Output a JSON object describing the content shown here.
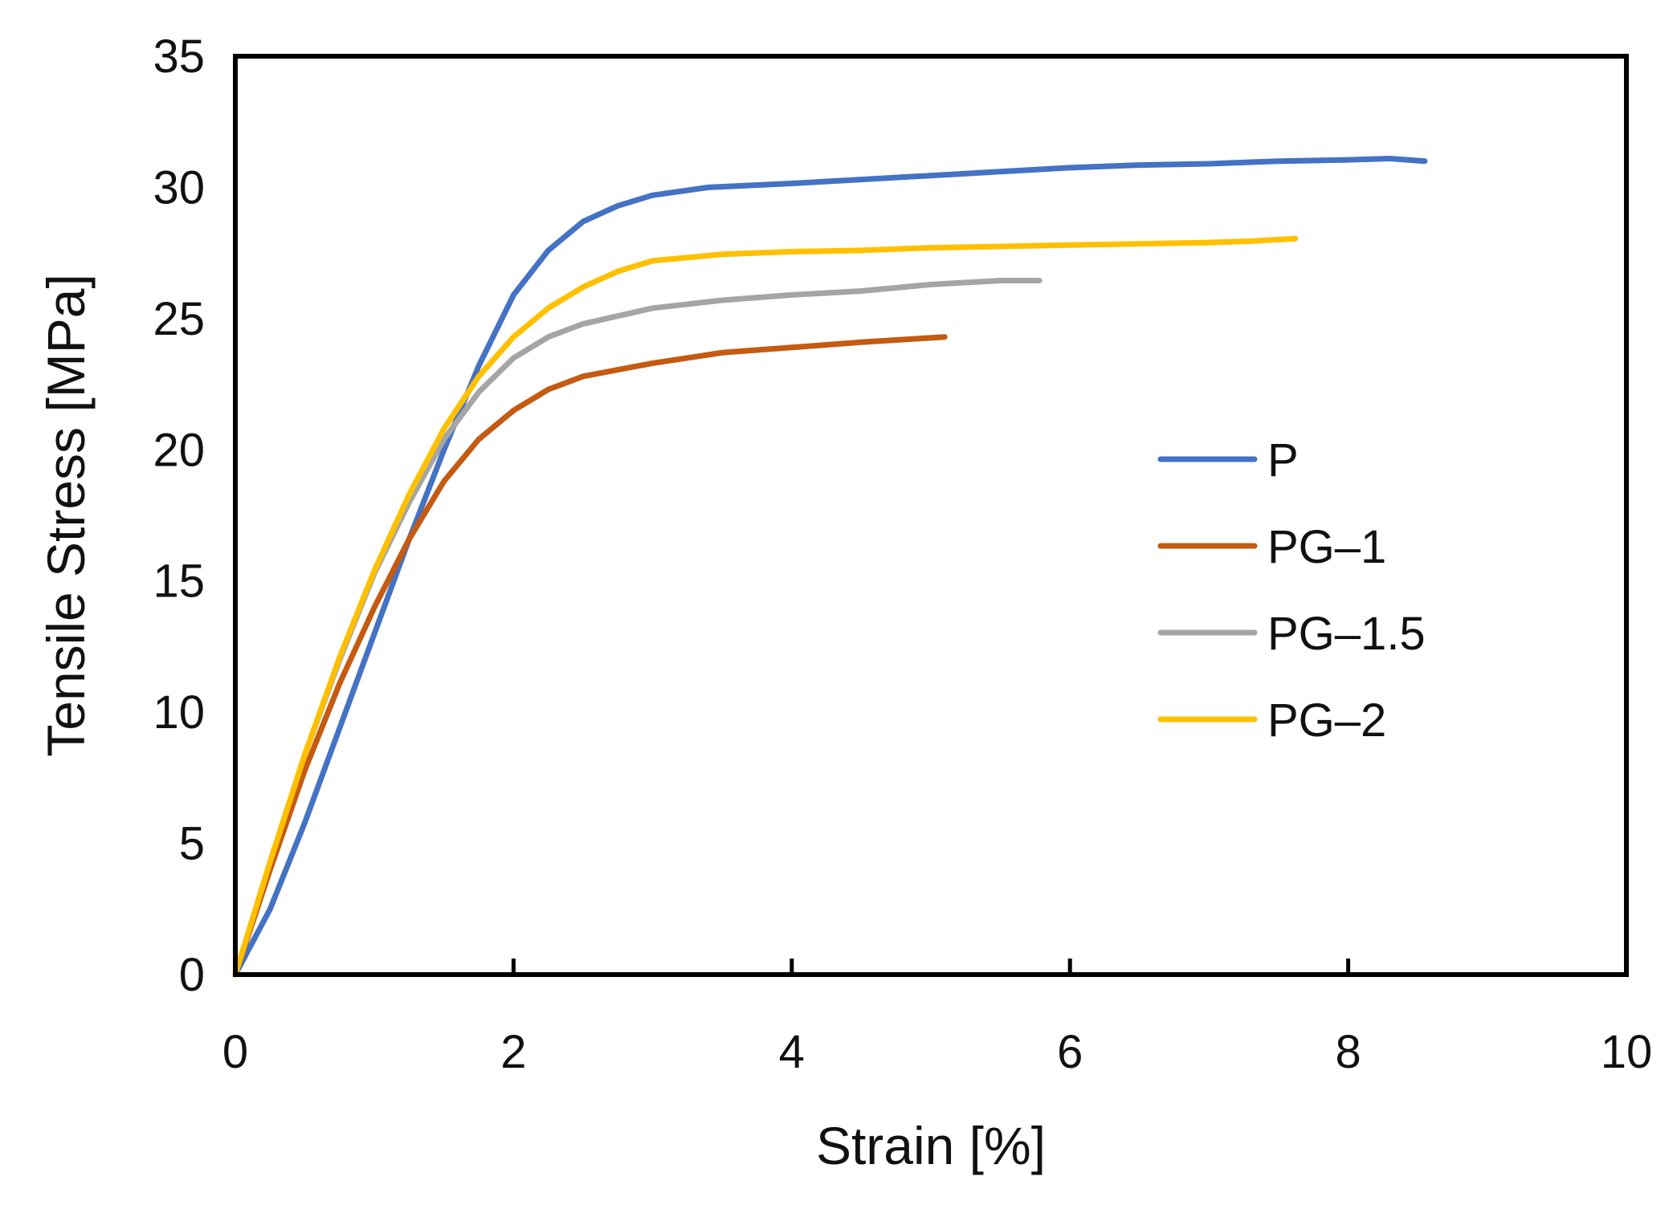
{
  "chart_data": {
    "type": "line",
    "title": "",
    "xlabel": "Strain [%]",
    "ylabel": "Tensile Stress [MPa]",
    "xlim": [
      0,
      10
    ],
    "ylim": [
      0,
      35
    ],
    "xticks": [
      0,
      2,
      4,
      6,
      8,
      10
    ],
    "yticks": [
      0,
      5,
      10,
      15,
      20,
      25,
      30,
      35
    ],
    "grid": false,
    "legend_position": "right-middle",
    "series": [
      {
        "name": "P",
        "color": "#4472C4",
        "x": [
          0,
          0.25,
          0.5,
          0.75,
          1.0,
          1.25,
          1.5,
          1.75,
          2.0,
          2.25,
          2.5,
          2.75,
          3.0,
          3.4,
          4.0,
          4.5,
          5.0,
          5.5,
          6.0,
          6.5,
          7.0,
          7.5,
          8.0,
          8.3,
          8.55
        ],
        "y": [
          0,
          2.5,
          5.8,
          9.4,
          13.0,
          16.6,
          20.0,
          23.2,
          25.9,
          27.6,
          28.7,
          29.3,
          29.7,
          30.0,
          30.15,
          30.3,
          30.45,
          30.6,
          30.75,
          30.85,
          30.9,
          31.0,
          31.05,
          31.1,
          31.0
        ]
      },
      {
        "name": "PG–1",
        "color": "#C55A11",
        "x": [
          0,
          0.25,
          0.5,
          0.75,
          1.0,
          1.25,
          1.5,
          1.75,
          2.0,
          2.25,
          2.5,
          3.0,
          3.5,
          4.0,
          4.5,
          5.1
        ],
        "y": [
          0,
          4.0,
          7.8,
          11.1,
          14.0,
          16.6,
          18.8,
          20.4,
          21.5,
          22.3,
          22.8,
          23.3,
          23.7,
          23.9,
          24.1,
          24.3
        ]
      },
      {
        "name": "PG–1.5",
        "color": "#A5A5A5",
        "x": [
          0,
          0.25,
          0.5,
          0.75,
          1.0,
          1.25,
          1.5,
          1.75,
          2.0,
          2.25,
          2.5,
          3.0,
          3.5,
          4.0,
          4.5,
          5.0,
          5.5,
          5.78
        ],
        "y": [
          0,
          4.3,
          8.4,
          12.0,
          15.3,
          18.0,
          20.4,
          22.2,
          23.5,
          24.3,
          24.8,
          25.4,
          25.7,
          25.9,
          26.05,
          26.3,
          26.45,
          26.45
        ]
      },
      {
        "name": "PG–2",
        "color": "#FFC000",
        "x": [
          0,
          0.25,
          0.5,
          0.75,
          1.0,
          1.25,
          1.5,
          1.75,
          2.0,
          2.25,
          2.5,
          2.75,
          3.0,
          3.5,
          4.0,
          4.5,
          5.0,
          5.5,
          6.0,
          6.5,
          7.0,
          7.3,
          7.62
        ],
        "y": [
          0,
          4.3,
          8.4,
          12.1,
          15.4,
          18.3,
          20.8,
          22.8,
          24.3,
          25.4,
          26.2,
          26.8,
          27.2,
          27.45,
          27.55,
          27.6,
          27.7,
          27.75,
          27.8,
          27.85,
          27.9,
          27.95,
          28.05
        ]
      }
    ]
  }
}
